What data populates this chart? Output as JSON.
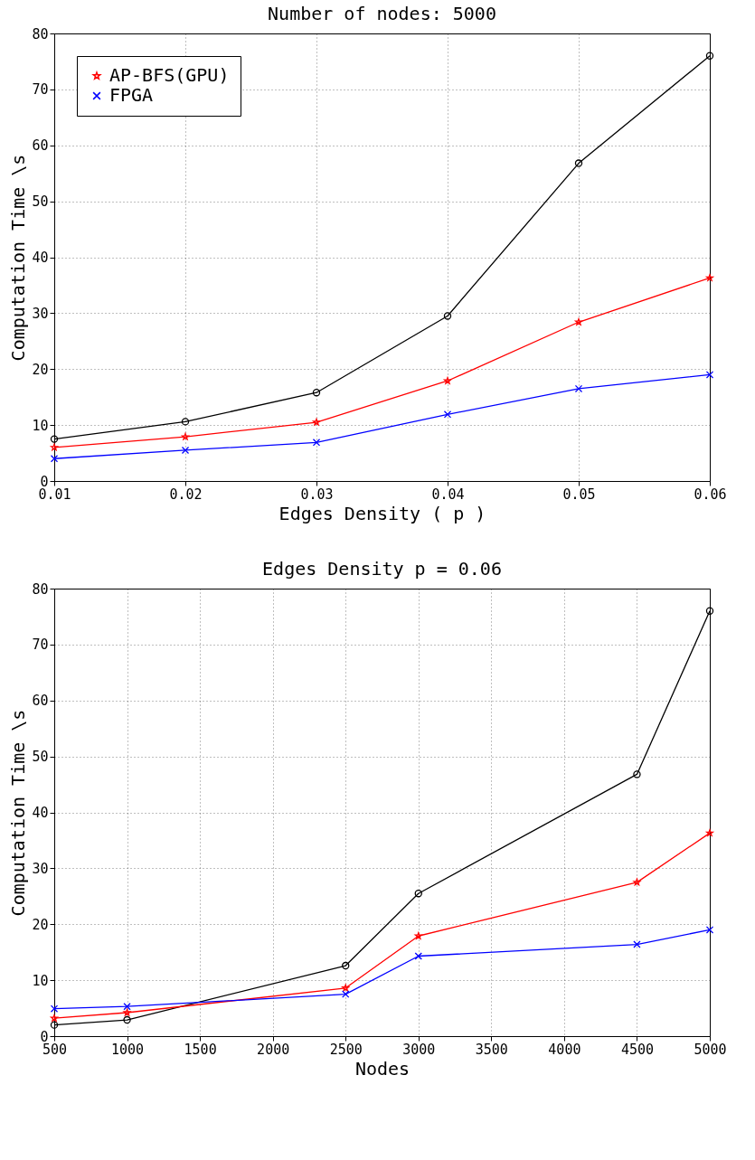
{
  "chart_data": [
    {
      "type": "line",
      "title": "Number of nodes: 5000",
      "xlabel": "Edges Density ( p )",
      "ylabel": "Computation Time \\s",
      "x": [
        0.01,
        0.02,
        0.03,
        0.04,
        0.05,
        0.06
      ],
      "xlim": [
        0.01,
        0.06
      ],
      "xticks": [
        0.01,
        0.02,
        0.03,
        0.04,
        0.05,
        0.06
      ],
      "ylim": [
        0,
        80
      ],
      "yticks": [
        0,
        10,
        20,
        30,
        40,
        50,
        60,
        70,
        80
      ],
      "grid": true,
      "legend": "top left",
      "series": [
        {
          "color": "#000000",
          "marker": "circle",
          "values": [
            7.5,
            10.6,
            15.8,
            29.5,
            56.8,
            76
          ]
        },
        {
          "name": "AP-BFS(GPU)",
          "color": "#ff0000",
          "marker": "star",
          "values": [
            6,
            7.9,
            10.5,
            17.9,
            28.4,
            36.3
          ]
        },
        {
          "name": "FPGA",
          "color": "#0000ff",
          "marker": "cross",
          "values": [
            4,
            5.5,
            6.9,
            11.9,
            16.5,
            19
          ]
        }
      ]
    },
    {
      "type": "line",
      "title": "Edges Density p = 0.06",
      "xlabel": "Nodes",
      "ylabel": "Computation Time \\s",
      "x": [
        500,
        1000,
        2500,
        3000,
        4500,
        5000
      ],
      "xlim": [
        500,
        5000
      ],
      "xticks": [
        500,
        1000,
        1500,
        2000,
        2500,
        3000,
        3500,
        4000,
        4500,
        5000
      ],
      "ylim": [
        0,
        80
      ],
      "yticks": [
        0,
        10,
        20,
        30,
        40,
        50,
        60,
        70,
        80
      ],
      "grid": true,
      "legend": "top left",
      "series": [
        {
          "color": "#000000",
          "marker": "circle",
          "values": [
            2,
            2.9,
            12.6,
            25.5,
            46.8,
            76
          ]
        },
        {
          "name": "AP-BFS(GPU)",
          "color": "#ff0000",
          "marker": "star",
          "values": [
            3.2,
            4.2,
            8.6,
            17.9,
            27.5,
            36.3
          ]
        },
        {
          "name": "FPGA",
          "color": "#0000ff",
          "marker": "cross",
          "values": [
            4.9,
            5.3,
            7.5,
            14.3,
            16.4,
            19
          ]
        }
      ]
    }
  ]
}
